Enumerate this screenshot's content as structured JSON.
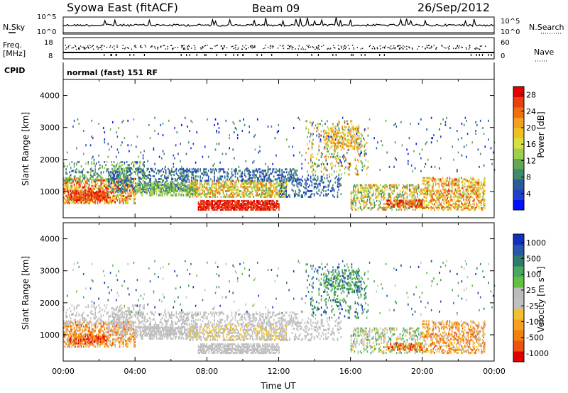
{
  "header": {
    "radar": "Syowa East (fitACF)",
    "beam": "Beam 09",
    "date": "26/Sep/2012"
  },
  "left_labels": {
    "nsky": "N.Sky",
    "freq": "Freq.",
    "freq_unit": "[MHz]",
    "cpid": "CPID"
  },
  "right_labels": {
    "nsearch": "N.Search",
    "nave": "Nave"
  },
  "cpid_text": "normal (fast) 151 RF",
  "chart_data": [
    {
      "type": "line",
      "panel": "noise",
      "y_left_ticks": [
        "10^5",
        "10^0"
      ],
      "y_right_ticks": [
        "10^5",
        "10^0"
      ],
      "legend": [
        "N.Sky",
        "N.Search"
      ]
    },
    {
      "type": "scatter",
      "panel": "frequency-nave",
      "ylim_left": [
        8,
        18
      ],
      "y_left_ticks": [
        "18",
        "8"
      ],
      "ylim_right": [
        0,
        60
      ],
      "y_right_ticks": [
        "60",
        "0"
      ],
      "legend": [
        "Freq.",
        "Nave"
      ]
    },
    {
      "type": "heatmap",
      "panel": "power",
      "ylabel": "Slant Range [km]",
      "ylim": [
        180,
        4500
      ],
      "y_ticks": [
        1000,
        2000,
        3000,
        4000
      ],
      "xlim_hours": [
        0,
        24
      ],
      "colorbar": {
        "label": "Power [dB]",
        "ticks": [
          4,
          8,
          12,
          16,
          20,
          24,
          28
        ],
        "range": [
          0,
          30
        ],
        "colors": [
          "#0010ff",
          "#2040c8",
          "#2a5a9a",
          "#3f8a6a",
          "#62a850",
          "#9ccf50",
          "#d8e040",
          "#f0c020",
          "#f2a020",
          "#f07010",
          "#e84010",
          "#e00000"
        ]
      }
    },
    {
      "type": "heatmap",
      "panel": "velocity",
      "ylabel": "Slant Range [km]",
      "xlabel": "Time UT",
      "ylim": [
        180,
        4500
      ],
      "y_ticks": [
        1000,
        2000,
        3000,
        4000
      ],
      "x_ticks": [
        "00:00",
        "04:00",
        "08:00",
        "12:00",
        "16:00",
        "20:00",
        "00:00"
      ],
      "xlim_hours": [
        0,
        24
      ],
      "colorbar": {
        "label": "Velocity [m s⁻¹]",
        "ticks": [
          "1000",
          "500",
          "100",
          "25",
          "-25",
          "-100",
          "-500",
          "-1000"
        ],
        "colors": [
          "#1030c0",
          "#2858a8",
          "#2f7a6a",
          "#48a860",
          "#64c040",
          "#bcbcbc",
          "#c0c0c0",
          "#f0c030",
          "#f4a020",
          "#f08010",
          "#f05010",
          "#e00000"
        ]
      }
    }
  ]
}
